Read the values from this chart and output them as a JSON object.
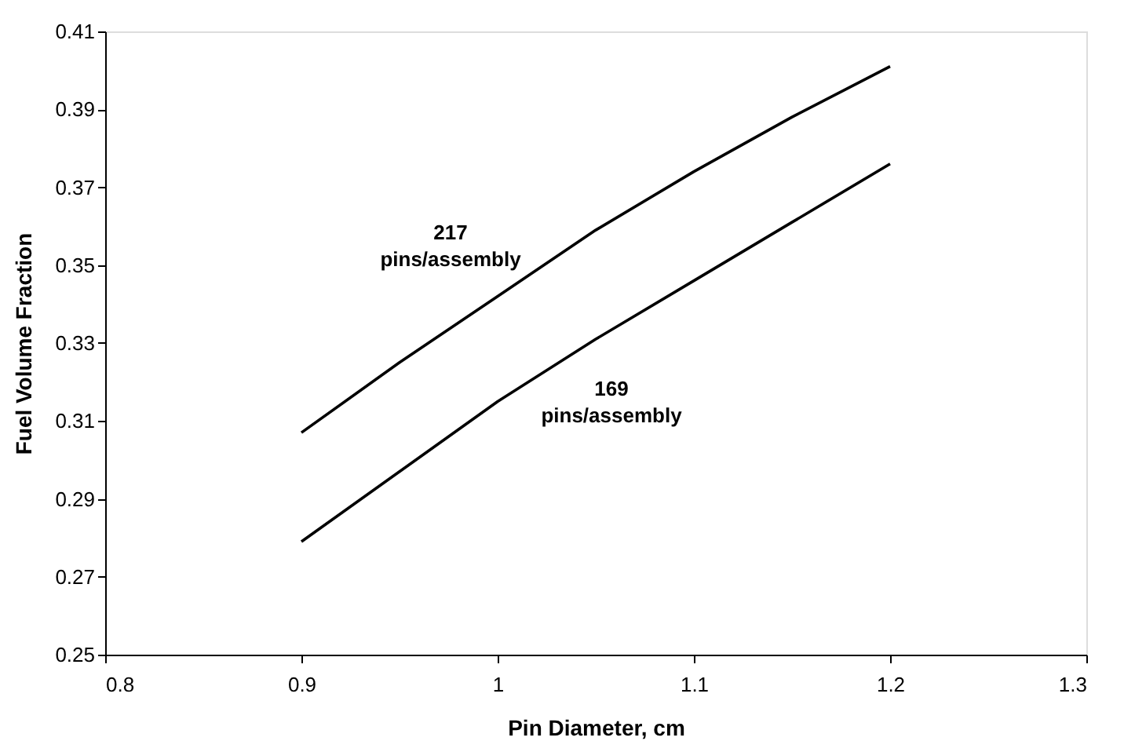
{
  "chart_data": {
    "type": "line",
    "xlabel": "Pin Diameter, cm",
    "ylabel": "Fuel Volume Fraction",
    "xlim": [
      0.8,
      1.3
    ],
    "xticks": [
      {
        "value": 0.8,
        "label": "0.8"
      },
      {
        "value": 0.9,
        "label": "0.9"
      },
      {
        "value": 1,
        "label": "1"
      },
      {
        "value": 1.1,
        "label": "1.1"
      },
      {
        "value": 1.2,
        "label": "1.2"
      },
      {
        "value": 1.3,
        "label": "1.3"
      }
    ],
    "ylim": [
      0.25,
      0.41
    ],
    "yticks": [
      0.25,
      0.27,
      0.29,
      0.31,
      0.33,
      0.35,
      0.37,
      0.39,
      0.41
    ],
    "grid": false,
    "marker": "none",
    "line_style": "solid",
    "series": [
      {
        "name": "217 pins/assembly",
        "color": "#000000",
        "x": [
          0.9,
          0.95,
          1.0,
          1.05,
          1.1,
          1.15,
          1.2
        ],
        "values": [
          0.307,
          0.325,
          0.342,
          0.359,
          0.374,
          0.388,
          0.401
        ]
      },
      {
        "name": "169 pins/assembly",
        "color": "#000000",
        "x": [
          0.9,
          0.95,
          1.0,
          1.05,
          1.1,
          1.15,
          1.2
        ],
        "values": [
          0.279,
          0.297,
          0.315,
          0.331,
          0.346,
          0.361,
          0.376
        ]
      }
    ]
  }
}
